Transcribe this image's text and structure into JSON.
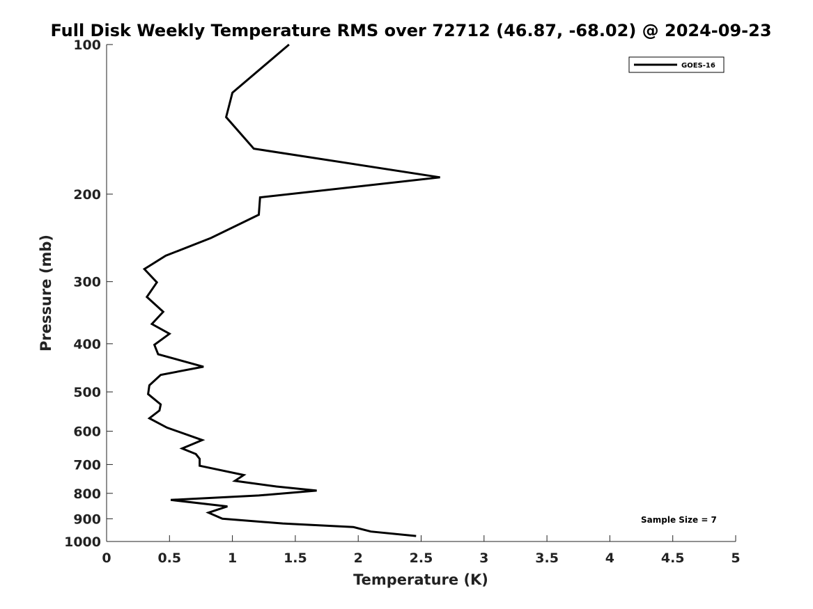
{
  "chart_data": {
    "type": "line",
    "title": "Full Disk Weekly Temperature RMS over 72712 (46.87, -68.02) @ 2024-09-23",
    "xlabel": "Temperature (K)",
    "ylabel": "Pressure (mb)",
    "xlim": [
      0,
      5
    ],
    "ylim": [
      100,
      1000
    ],
    "y_scale": "log",
    "y_reversed": true,
    "x_ticks": [
      "0",
      "0.5",
      "1",
      "1.5",
      "2",
      "2.5",
      "3",
      "3.5",
      "4",
      "4.5",
      "5"
    ],
    "y_ticks": [
      "100",
      "200",
      "300",
      "400",
      "500",
      "600",
      "700",
      "800",
      "900",
      "1000"
    ],
    "grid": false,
    "legend_position": "top-right",
    "series": [
      {
        "name": "GOES-16",
        "color": "#000000",
        "points": [
          [
            1.45,
            100
          ],
          [
            1.0,
            125
          ],
          [
            0.95,
            140
          ],
          [
            1.17,
            162
          ],
          [
            2.65,
            185
          ],
          [
            1.22,
            203
          ],
          [
            1.21,
            220
          ],
          [
            0.83,
            245
          ],
          [
            0.47,
            266
          ],
          [
            0.3,
            283
          ],
          [
            0.4,
            301
          ],
          [
            0.32,
            322
          ],
          [
            0.45,
            345
          ],
          [
            0.36,
            365
          ],
          [
            0.5,
            382
          ],
          [
            0.38,
            402
          ],
          [
            0.41,
            420
          ],
          [
            0.77,
            445
          ],
          [
            0.43,
            462
          ],
          [
            0.34,
            485
          ],
          [
            0.33,
            505
          ],
          [
            0.43,
            530
          ],
          [
            0.42,
            545
          ],
          [
            0.34,
            565
          ],
          [
            0.48,
            590
          ],
          [
            0.76,
            625
          ],
          [
            0.6,
            650
          ],
          [
            0.71,
            667
          ],
          [
            0.74,
            682
          ],
          [
            0.74,
            704
          ],
          [
            1.09,
            735
          ],
          [
            1.02,
            755
          ],
          [
            1.35,
            775
          ],
          [
            1.67,
            790
          ],
          [
            1.21,
            808
          ],
          [
            0.51,
            825
          ],
          [
            0.96,
            850
          ],
          [
            0.81,
            875
          ],
          [
            0.92,
            900
          ],
          [
            1.4,
            920
          ],
          [
            1.96,
            935
          ],
          [
            2.1,
            955
          ],
          [
            2.46,
            975
          ]
        ]
      }
    ],
    "annotations": [
      "Sample Size = 7"
    ]
  }
}
